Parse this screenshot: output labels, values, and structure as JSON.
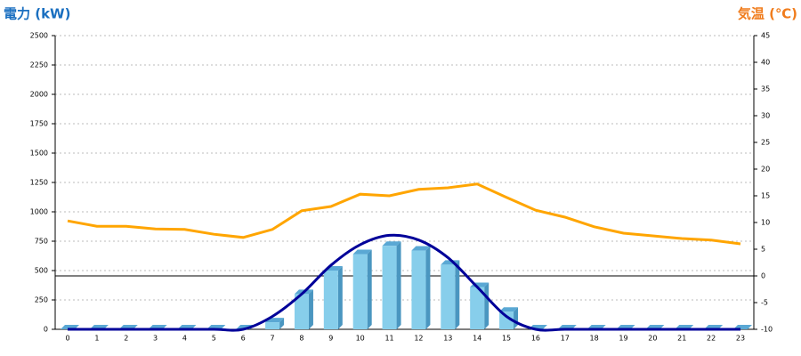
{
  "chart_data": {
    "type": "combo",
    "y_title": "電力 (kW)",
    "y2_title": "気温 (℃)",
    "categories": [
      "0",
      "1",
      "2",
      "3",
      "4",
      "5",
      "6",
      "7",
      "8",
      "9",
      "10",
      "11",
      "12",
      "13",
      "14",
      "15",
      "16",
      "17",
      "18",
      "19",
      "20",
      "21",
      "22",
      "23"
    ],
    "series": [
      {
        "type": "bar",
        "color": "#87ceeb",
        "values": [
          0,
          0,
          0,
          0,
          0,
          0,
          0,
          60,
          300,
          500,
          640,
          710,
          670,
          550,
          360,
          150,
          0,
          0,
          0,
          0,
          0,
          0,
          0,
          0
        ]
      },
      {
        "type": "smooth",
        "color": "#000099",
        "values": [
          0,
          0,
          0,
          0,
          0,
          0,
          0,
          110,
          300,
          545,
          720,
          800,
          760,
          610,
          360,
          110,
          0,
          0,
          0,
          0,
          0,
          0,
          0,
          0
        ]
      },
      {
        "type": "line",
        "color": "#ffa500",
        "axis": "y2",
        "values": [
          10.3,
          9.3,
          9.3,
          8.8,
          8.7,
          7.8,
          7.2,
          8.7,
          12.2,
          13,
          15.3,
          15,
          16.2,
          16.5,
          17.2,
          14.7,
          12.3,
          11,
          9.2,
          8,
          7.5,
          7,
          6.7,
          6
        ]
      }
    ],
    "ylim": [
      0,
      2500
    ],
    "yticks": [
      0,
      250,
      500,
      750,
      1000,
      1250,
      1500,
      1750,
      2000,
      2250,
      2500
    ],
    "y2lim": [
      -10,
      45
    ],
    "y2ticks": [
      -10,
      -5,
      0,
      5,
      10,
      15,
      20,
      25,
      30,
      35,
      40,
      45
    ],
    "grid": true
  }
}
